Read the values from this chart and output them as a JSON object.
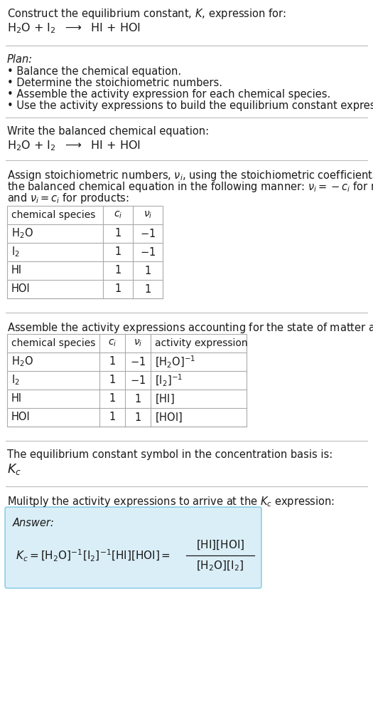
{
  "title_line1": "Construct the equilibrium constant, $K$, expression for:",
  "title_line2_parts": [
    "H",
    "2",
    "O + I",
    "2",
    "  ⟶  HI + HOI"
  ],
  "plan_header": "Plan:",
  "plan_bullets": [
    "• Balance the chemical equation.",
    "• Determine the stoichiometric numbers.",
    "• Assemble the activity expression for each chemical species.",
    "• Use the activity expressions to build the equilibrium constant expression."
  ],
  "section2_header": "Write the balanced chemical equation:",
  "section3_header_lines": [
    "Assign stoichiometric numbers, $\\nu_i$, using the stoichiometric coefficients, $c_i$, from",
    "the balanced chemical equation in the following manner: $\\nu_i = -c_i$ for reactants",
    "and $\\nu_i = c_i$ for products:"
  ],
  "table1_cols": [
    "chemical species",
    "$c_i$",
    "$\\nu_i$"
  ],
  "table1_rows": [
    [
      "H$_2$O",
      "1",
      "$-1$"
    ],
    [
      "I$_2$",
      "1",
      "$-1$"
    ],
    [
      "HI",
      "1",
      "$1$"
    ],
    [
      "HOI",
      "1",
      "$1$"
    ]
  ],
  "section4_header": "Assemble the activity expressions accounting for the state of matter and $\\nu_i$:",
  "table2_cols": [
    "chemical species",
    "$c_i$",
    "$\\nu_i$",
    "activity expression"
  ],
  "table2_rows": [
    [
      "H$_2$O",
      "1",
      "$-1$",
      "$[\\mathrm{H_2O}]^{-1}$"
    ],
    [
      "I$_2$",
      "1",
      "$-1$",
      "$[\\mathrm{I_2}]^{-1}$"
    ],
    [
      "HI",
      "1",
      "$1$",
      "$[\\mathrm{HI}]$"
    ],
    [
      "HOI",
      "1",
      "$1$",
      "$[\\mathrm{HOI}]$"
    ]
  ],
  "section5_header": "The equilibrium constant symbol in the concentration basis is:",
  "section5_symbol": "$K_c$",
  "section6_header": "Mulitply the activity expressions to arrive at the $K_c$ expression:",
  "answer_label": "Answer:",
  "answer_box_color": "#daeef7",
  "answer_box_border": "#7ec8e3",
  "bg_color": "#ffffff",
  "text_color": "#1a1a1a",
  "table_border_color": "#aaaaaa",
  "separator_color": "#bbbbbb",
  "font_size": 10.5
}
